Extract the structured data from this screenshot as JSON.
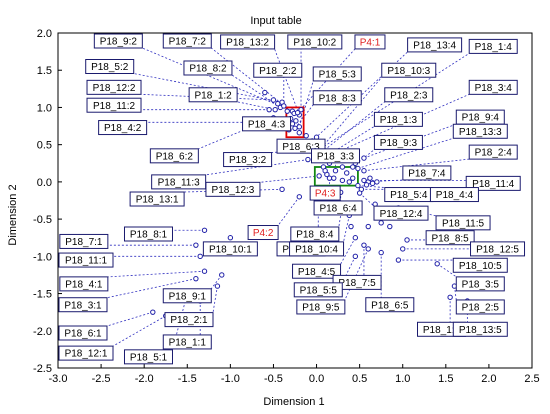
{
  "chart_data": {
    "type": "scatter",
    "title": "Input table",
    "xlabel": "Dimension 1",
    "ylabel": "Dimension 2",
    "xlim": [
      -3.0,
      2.5
    ],
    "ylim": [
      -2.5,
      2.0
    ],
    "xticks": [
      "-3.0",
      "-2.5",
      "-2.0",
      "-1.5",
      "-1.0",
      "-0.5",
      "0.0",
      "0.5",
      "1.0",
      "1.5",
      "2.0",
      "2.5"
    ],
    "yticks": [
      "2.0",
      "1.5",
      "1.0",
      "0.5",
      "0.0",
      "-0.5",
      "-1.0",
      "-1.5",
      "-2.0",
      "-2.5"
    ],
    "grid": false,
    "colors": {
      "marker": "#1f1fa8",
      "leader": "#3030c0",
      "label_border": "#1a1a6e",
      "label_text": "#000000",
      "highlight_label": "#e02020",
      "red_box": "#e00000",
      "green_box": "#118811"
    },
    "points": [
      {
        "label": "P18_9:2",
        "x": -0.28,
        "y": 0.95,
        "lx": -2.3,
        "ly": 1.9
      },
      {
        "label": "P18_7:2",
        "x": -0.26,
        "y": 0.92,
        "lx": -1.5,
        "ly": 1.9
      },
      {
        "label": "P18_13:2",
        "x": -0.2,
        "y": 0.9,
        "lx": -0.8,
        "ly": 1.88
      },
      {
        "label": "P18_10:2",
        "x": -0.18,
        "y": 0.97,
        "lx": -0.02,
        "ly": 1.88
      },
      {
        "label": "P4:1",
        "x": -0.22,
        "y": 0.93,
        "lx": 0.62,
        "ly": 1.88
      },
      {
        "label": "P18_13:4",
        "x": -0.05,
        "y": 0.55,
        "lx": 1.37,
        "ly": 1.84
      },
      {
        "label": "P18_1:4",
        "x": 0.05,
        "y": 0.45,
        "lx": 2.05,
        "ly": 1.82
      },
      {
        "label": "P18_5:2",
        "x": -0.4,
        "y": 1.07,
        "lx": -2.4,
        "ly": 1.55
      },
      {
        "label": "P18_8:2",
        "x": -0.42,
        "y": 1.0,
        "lx": -1.26,
        "ly": 1.53
      },
      {
        "label": "P18_2:2",
        "x": -0.38,
        "y": 1.02,
        "lx": -0.45,
        "ly": 1.5
      },
      {
        "label": "P18_5:3",
        "x": -0.2,
        "y": 0.74,
        "lx": 0.24,
        "ly": 1.45
      },
      {
        "label": "P18_10:3",
        "x": 0.0,
        "y": 0.38,
        "lx": 1.07,
        "ly": 1.5
      },
      {
        "label": "P18_12:2",
        "x": -0.5,
        "y": 1.1,
        "lx": -2.35,
        "ly": 1.27
      },
      {
        "label": "P18_1:2",
        "x": -0.48,
        "y": 0.97,
        "lx": -1.2,
        "ly": 1.17
      },
      {
        "label": "P18_8:3",
        "x": -0.25,
        "y": 0.72,
        "lx": 0.24,
        "ly": 1.13
      },
      {
        "label": "P18_2:3",
        "x": 0.02,
        "y": 0.36,
        "lx": 1.07,
        "ly": 1.17
      },
      {
        "label": "P18_3:4",
        "x": 0.1,
        "y": 0.33,
        "lx": 2.05,
        "ly": 1.27
      },
      {
        "label": "P18_11:2",
        "x": -0.55,
        "y": 0.97,
        "lx": -2.35,
        "ly": 1.03
      },
      {
        "label": "P18_1:3",
        "x": 0.05,
        "y": 0.3,
        "lx": 0.95,
        "ly": 0.84
      },
      {
        "label": "P18_9:4",
        "x": 0.55,
        "y": 0.32,
        "lx": 1.9,
        "ly": 0.87
      },
      {
        "label": "P18_4:2",
        "x": -0.35,
        "y": 0.8,
        "lx": -2.25,
        "ly": 0.73
      },
      {
        "label": "P18_4:3",
        "x": -0.32,
        "y": 0.7,
        "lx": -0.58,
        "ly": 0.78
      },
      {
        "label": "P18_13:3",
        "x": 0.48,
        "y": 0.18,
        "lx": 1.9,
        "ly": 0.68
      },
      {
        "label": "P18_9:3",
        "x": 0.42,
        "y": 0.2,
        "lx": 0.95,
        "ly": 0.53
      },
      {
        "label": "P18_6:3",
        "x": 0.04,
        "y": 0.4,
        "lx": -0.18,
        "ly": 0.48
      },
      {
        "label": "P18_2:4",
        "x": 0.55,
        "y": 0.15,
        "lx": 2.05,
        "ly": 0.4
      },
      {
        "label": "P18_6:2",
        "x": -0.5,
        "y": 0.86,
        "lx": -1.65,
        "ly": 0.35
      },
      {
        "label": "P18_3:2",
        "x": -0.18,
        "y": 0.42,
        "lx": -0.8,
        "ly": 0.3
      },
      {
        "label": "P18_3:3",
        "x": 0.22,
        "y": 0.15,
        "lx": 0.22,
        "ly": 0.35
      },
      {
        "label": "P18_7:4",
        "x": 0.6,
        "y": 0.0,
        "lx": 1.28,
        "ly": 0.12
      },
      {
        "label": "P18_11:3",
        "x": -0.1,
        "y": 0.3,
        "lx": -1.6,
        "ly": 0.0
      },
      {
        "label": "P18_11:4",
        "x": 0.55,
        "y": 0.02,
        "lx": 2.05,
        "ly": -0.02
      },
      {
        "label": "P18_12:3",
        "x": 0.03,
        "y": 0.08,
        "lx": -0.97,
        "ly": -0.1
      },
      {
        "label": "P18_5:4",
        "x": 0.48,
        "y": -0.05,
        "lx": 1.07,
        "ly": -0.17
      },
      {
        "label": "P18_4:4",
        "x": 0.52,
        "y": -0.1,
        "lx": 1.6,
        "ly": -0.17
      },
      {
        "label": "P18_13:1",
        "x": -0.4,
        "y": -0.1,
        "lx": -1.85,
        "ly": -0.23
      },
      {
        "label": "P4:3",
        "x": 0.15,
        "y": 0.05,
        "lx": 0.1,
        "ly": -0.15
      },
      {
        "label": "P18_6:4",
        "x": 0.28,
        "y": -0.14,
        "lx": 0.25,
        "ly": -0.35
      },
      {
        "label": "P18_12:4",
        "x": 0.5,
        "y": -0.15,
        "lx": 0.98,
        "ly": -0.42
      },
      {
        "label": "P18_11:5",
        "x": 0.95,
        "y": -0.35,
        "lx": 1.7,
        "ly": -0.55
      },
      {
        "label": "P18_8:4",
        "x": 0.3,
        "y": -0.3,
        "lx": -0.02,
        "ly": -0.7
      },
      {
        "label": "P18_8:1",
        "x": -1.3,
        "y": -0.65,
        "lx": -1.95,
        "ly": -0.7
      },
      {
        "label": "P4:2",
        "x": -0.2,
        "y": -0.2,
        "lx": -0.62,
        "ly": -0.68
      },
      {
        "label": "P18_8:5",
        "x": 1.05,
        "y": -0.78,
        "lx": 1.55,
        "ly": -0.75
      },
      {
        "label": "P18_7:1",
        "x": -1.4,
        "y": -0.85,
        "lx": -2.7,
        "ly": -0.8
      },
      {
        "label": "P18_10:1",
        "x": -1.0,
        "y": -0.75,
        "lx": -1.0,
        "ly": -0.9
      },
      {
        "label": "P18_7:3",
        "x": 0.02,
        "y": -0.25,
        "lx": -0.18,
        "ly": -0.9
      },
      {
        "label": "P18_10:4",
        "x": 0.38,
        "y": -0.45,
        "lx": 0.0,
        "ly": -0.9
      },
      {
        "label": "P18_12:5",
        "x": 1.0,
        "y": -0.9,
        "lx": 2.1,
        "ly": -0.9
      },
      {
        "label": "P18_11:1",
        "x": -1.35,
        "y": -1.0,
        "lx": -2.75,
        "ly": -1.05
      },
      {
        "label": "P18_10:5",
        "x": 0.95,
        "y": -1.05,
        "lx": 1.9,
        "ly": -1.12
      },
      {
        "label": "P18_4:1",
        "x": -1.3,
        "y": -1.2,
        "lx": -2.7,
        "ly": -1.37
      },
      {
        "label": "P18_4:5",
        "x": 0.45,
        "y": -0.75,
        "lx": 0.0,
        "ly": -1.2
      },
      {
        "label": "P18_7:5",
        "x": 0.55,
        "y": -0.85,
        "lx": 0.47,
        "ly": -1.35
      },
      {
        "label": "P18_3:5",
        "x": 1.4,
        "y": -1.1,
        "lx": 1.9,
        "ly": -1.37
      },
      {
        "label": "P18_5:5",
        "x": 0.45,
        "y": -1.0,
        "lx": 0.02,
        "ly": -1.45
      },
      {
        "label": "P18_9:1",
        "x": -1.1,
        "y": -1.25,
        "lx": -1.5,
        "ly": -1.53
      },
      {
        "label": "P18_3:1",
        "x": -1.4,
        "y": -1.3,
        "lx": -2.85,
        "ly": -1.65
      },
      {
        "label": "P18_6:5",
        "x": 0.75,
        "y": -0.95,
        "lx": 0.85,
        "ly": -1.65
      },
      {
        "label": "P18_9:5",
        "x": 0.6,
        "y": -0.9,
        "lx": 0.05,
        "ly": -1.68
      },
      {
        "label": "P18_2:5",
        "x": 1.6,
        "y": -1.4,
        "lx": 1.9,
        "ly": -1.68
      },
      {
        "label": "P18_2:1",
        "x": -1.15,
        "y": -1.4,
        "lx": -1.48,
        "ly": -1.85
      },
      {
        "label": "P18_6:1",
        "x": -1.9,
        "y": -1.75,
        "lx": -2.75,
        "ly": -2.03
      },
      {
        "label": "P18_1:5",
        "x": 1.55,
        "y": -1.55,
        "lx": 1.45,
        "ly": -1.98
      },
      {
        "label": "P18_13:5",
        "x": 1.75,
        "y": -1.6,
        "lx": 1.9,
        "ly": -1.98
      },
      {
        "label": "P18_1:1",
        "x": -1.35,
        "y": -1.6,
        "lx": -1.5,
        "ly": -2.15
      },
      {
        "label": "P18_12:1",
        "x": -1.75,
        "y": -1.8,
        "lx": -2.7,
        "ly": -2.3
      },
      {
        "label": "P18_5:1",
        "x": -1.5,
        "y": -1.5,
        "lx": -1.95,
        "ly": -2.35
      }
    ],
    "extra_points": [
      {
        "x": -0.3,
        "y": 0.85
      },
      {
        "x": -0.34,
        "y": 0.95
      },
      {
        "x": -0.24,
        "y": 0.82
      },
      {
        "x": -0.2,
        "y": 0.66
      },
      {
        "x": -0.12,
        "y": 0.62
      },
      {
        "x": -0.28,
        "y": 0.78
      },
      {
        "x": 0.0,
        "y": 0.6
      },
      {
        "x": 0.08,
        "y": 0.2
      },
      {
        "x": 0.12,
        "y": 0.1
      },
      {
        "x": 0.2,
        "y": 0.05
      },
      {
        "x": 0.3,
        "y": 0.02
      },
      {
        "x": 0.38,
        "y": 0.0
      },
      {
        "x": 0.42,
        "y": 0.05
      },
      {
        "x": 0.35,
        "y": 0.12
      },
      {
        "x": 0.62,
        "y": 0.05
      },
      {
        "x": 0.58,
        "y": -0.04
      },
      {
        "x": 0.65,
        "y": -0.02
      },
      {
        "x": 0.7,
        "y": 0.0
      },
      {
        "x": 0.45,
        "y": 0.25
      },
      {
        "x": 0.3,
        "y": 0.2
      },
      {
        "x": 0.15,
        "y": 0.25
      },
      {
        "x": 0.1,
        "y": 0.15
      },
      {
        "x": 0.68,
        "y": -0.3
      },
      {
        "x": 0.85,
        "y": -0.6
      },
      {
        "x": 0.75,
        "y": -0.55
      },
      {
        "x": -0.6,
        "y": 1.2
      },
      {
        "x": -0.45,
        "y": 1.05
      },
      {
        "x": 0.6,
        "y": -0.6
      },
      {
        "x": 0.4,
        "y": -0.6
      },
      {
        "x": 0.5,
        "y": -0.4
      }
    ],
    "highlight_labels": [
      "P4:1",
      "P4:2",
      "P4:3"
    ],
    "highlight_boxes": [
      {
        "color": "red",
        "x0": -0.35,
        "x1": -0.15,
        "y0": 0.6,
        "y1": 1.0
      },
      {
        "color": "green",
        "x0": -0.02,
        "x1": 0.48,
        "y0": -0.05,
        "y1": 0.2
      }
    ]
  }
}
